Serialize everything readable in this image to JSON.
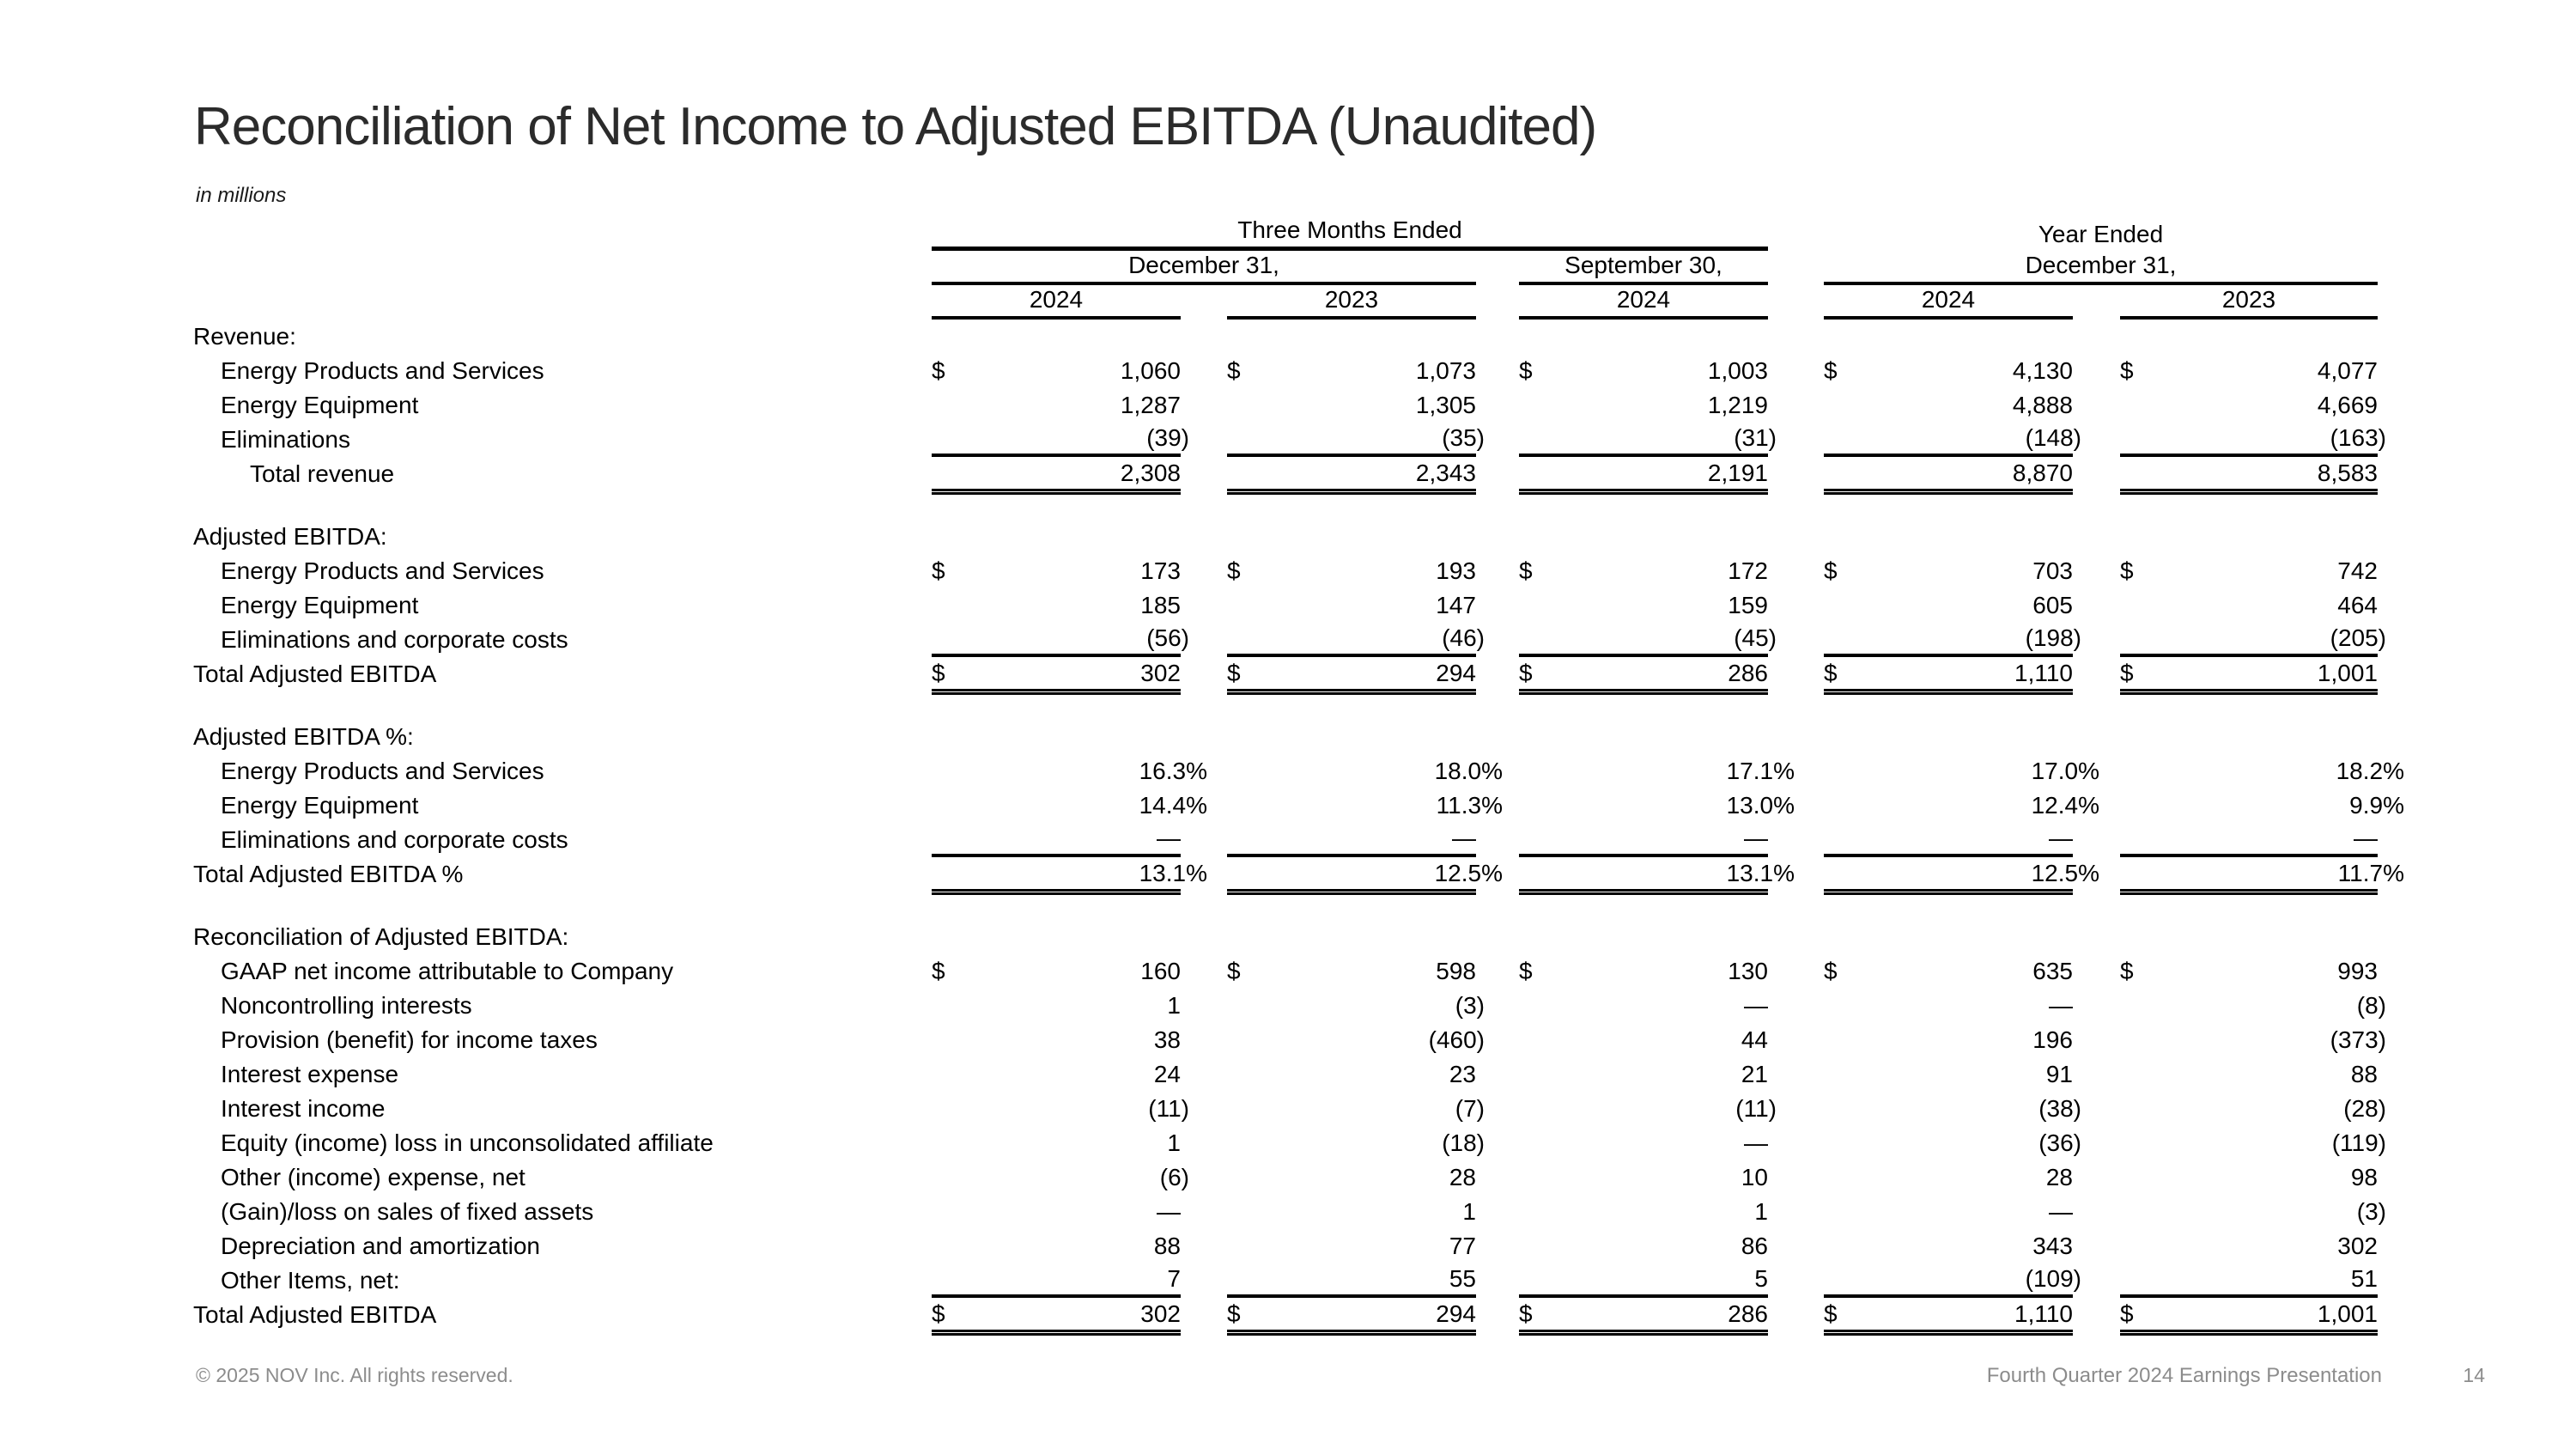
{
  "slide": {
    "title": "Reconciliation of Net Income to Adjusted EBITDA (Unaudited)",
    "subtitle": "in millions",
    "footer_left": "© 2025 NOV Inc. All rights reserved.",
    "footer_right": "Fourth Quarter 2024 Earnings Presentation",
    "page_number": "14"
  },
  "colors": {
    "text": "#000000",
    "title": "#2b2b2b",
    "footer": "#8c8c8c",
    "rule": "#000000",
    "background": "#ffffff"
  },
  "table": {
    "header": {
      "currency_symbol": "$",
      "three_months_label": "Three Months Ended",
      "year_ended_label": "Year Ended",
      "sub_dec31_three_months": "December 31,",
      "sub_sep30": "September 30,",
      "sub_dec31_year_ended": "December 31,",
      "years": [
        "2024",
        "2023",
        "2024",
        "2024",
        "2023"
      ]
    },
    "sections": [
      {
        "header": "Revenue:",
        "rows": [
          {
            "label": "Energy Products and Services",
            "indent": 1,
            "dollar": true,
            "values": [
              "1,060",
              "1,073",
              "1,003",
              "4,130",
              "4,077"
            ]
          },
          {
            "label": "Energy Equipment",
            "indent": 1,
            "values": [
              "1,287",
              "1,305",
              "1,219",
              "4,888",
              "4,669"
            ]
          },
          {
            "label": "Eliminations",
            "indent": 1,
            "rule_below": true,
            "values": [
              "(39)",
              "(35)",
              "(31)",
              "(148)",
              "(163)"
            ]
          },
          {
            "label": "Total revenue",
            "indent": 2,
            "double_below": true,
            "values": [
              "2,308",
              "2,343",
              "2,191",
              "8,870",
              "8,583"
            ]
          }
        ]
      },
      {
        "header": "Adjusted EBITDA:",
        "rows": [
          {
            "label": "Energy Products and Services",
            "indent": 1,
            "dollar": true,
            "values": [
              "173",
              "193",
              "172",
              "703",
              "742"
            ]
          },
          {
            "label": "Energy Equipment",
            "indent": 1,
            "values": [
              "185",
              "147",
              "159",
              "605",
              "464"
            ]
          },
          {
            "label": "Eliminations and corporate costs",
            "indent": 1,
            "rule_below": true,
            "values": [
              "(56)",
              "(46)",
              "(45)",
              "(198)",
              "(205)"
            ]
          },
          {
            "label": "Total Adjusted EBITDA",
            "indent": 0,
            "dollar": true,
            "double_below": true,
            "values": [
              "302",
              "294",
              "286",
              "1,110",
              "1,001"
            ]
          }
        ]
      },
      {
        "header": "Adjusted EBITDA %:",
        "rows": [
          {
            "label": "Energy Products and Services",
            "indent": 1,
            "values": [
              "16.3%",
              "18.0%",
              "17.1%",
              "17.0%",
              "18.2%"
            ]
          },
          {
            "label": "Energy Equipment",
            "indent": 1,
            "values": [
              "14.4%",
              "11.3%",
              "13.0%",
              "12.4%",
              "9.9%"
            ]
          },
          {
            "label": "Eliminations and corporate costs",
            "indent": 1,
            "rule_below": true,
            "values": [
              "—",
              "—",
              "—",
              "—",
              "—"
            ]
          },
          {
            "label": "Total Adjusted EBITDA %",
            "indent": 0,
            "double_below": true,
            "values": [
              "13.1%",
              "12.5%",
              "13.1%",
              "12.5%",
              "11.7%"
            ]
          }
        ]
      },
      {
        "header": "Reconciliation of Adjusted EBITDA:",
        "rows": [
          {
            "label": "GAAP net income attributable to Company",
            "indent": 1,
            "dollar": true,
            "values": [
              "160",
              "598",
              "130",
              "635",
              "993"
            ]
          },
          {
            "label": "Noncontrolling interests",
            "indent": 1,
            "values": [
              "1",
              "(3)",
              "—",
              "—",
              "(8)"
            ]
          },
          {
            "label": "Provision (benefit) for income taxes",
            "indent": 1,
            "values": [
              "38",
              "(460)",
              "44",
              "196",
              "(373)"
            ]
          },
          {
            "label": "Interest expense",
            "indent": 1,
            "values": [
              "24",
              "23",
              "21",
              "91",
              "88"
            ]
          },
          {
            "label": "Interest income",
            "indent": 1,
            "values": [
              "(11)",
              "(7)",
              "(11)",
              "(38)",
              "(28)"
            ]
          },
          {
            "label": "Equity (income) loss in unconsolidated affiliate",
            "indent": 1,
            "values": [
              "1",
              "(18)",
              "—",
              "(36)",
              "(119)"
            ]
          },
          {
            "label": "Other (income) expense, net",
            "indent": 1,
            "values": [
              "(6)",
              "28",
              "10",
              "28",
              "98"
            ]
          },
          {
            "label": "(Gain)/loss on sales of fixed assets",
            "indent": 1,
            "values": [
              "—",
              "1",
              "1",
              "—",
              "(3)"
            ]
          },
          {
            "label": "Depreciation and amortization",
            "indent": 1,
            "values": [
              "88",
              "77",
              "86",
              "343",
              "302"
            ]
          },
          {
            "label": "Other Items, net:",
            "indent": 1,
            "rule_below": true,
            "values": [
              "7",
              "55",
              "5",
              "(109)",
              "51"
            ]
          },
          {
            "label": "Total Adjusted EBITDA",
            "indent": 0,
            "dollar": true,
            "double_below": true,
            "values": [
              "302",
              "294",
              "286",
              "1,110",
              "1,001"
            ]
          }
        ]
      }
    ]
  }
}
